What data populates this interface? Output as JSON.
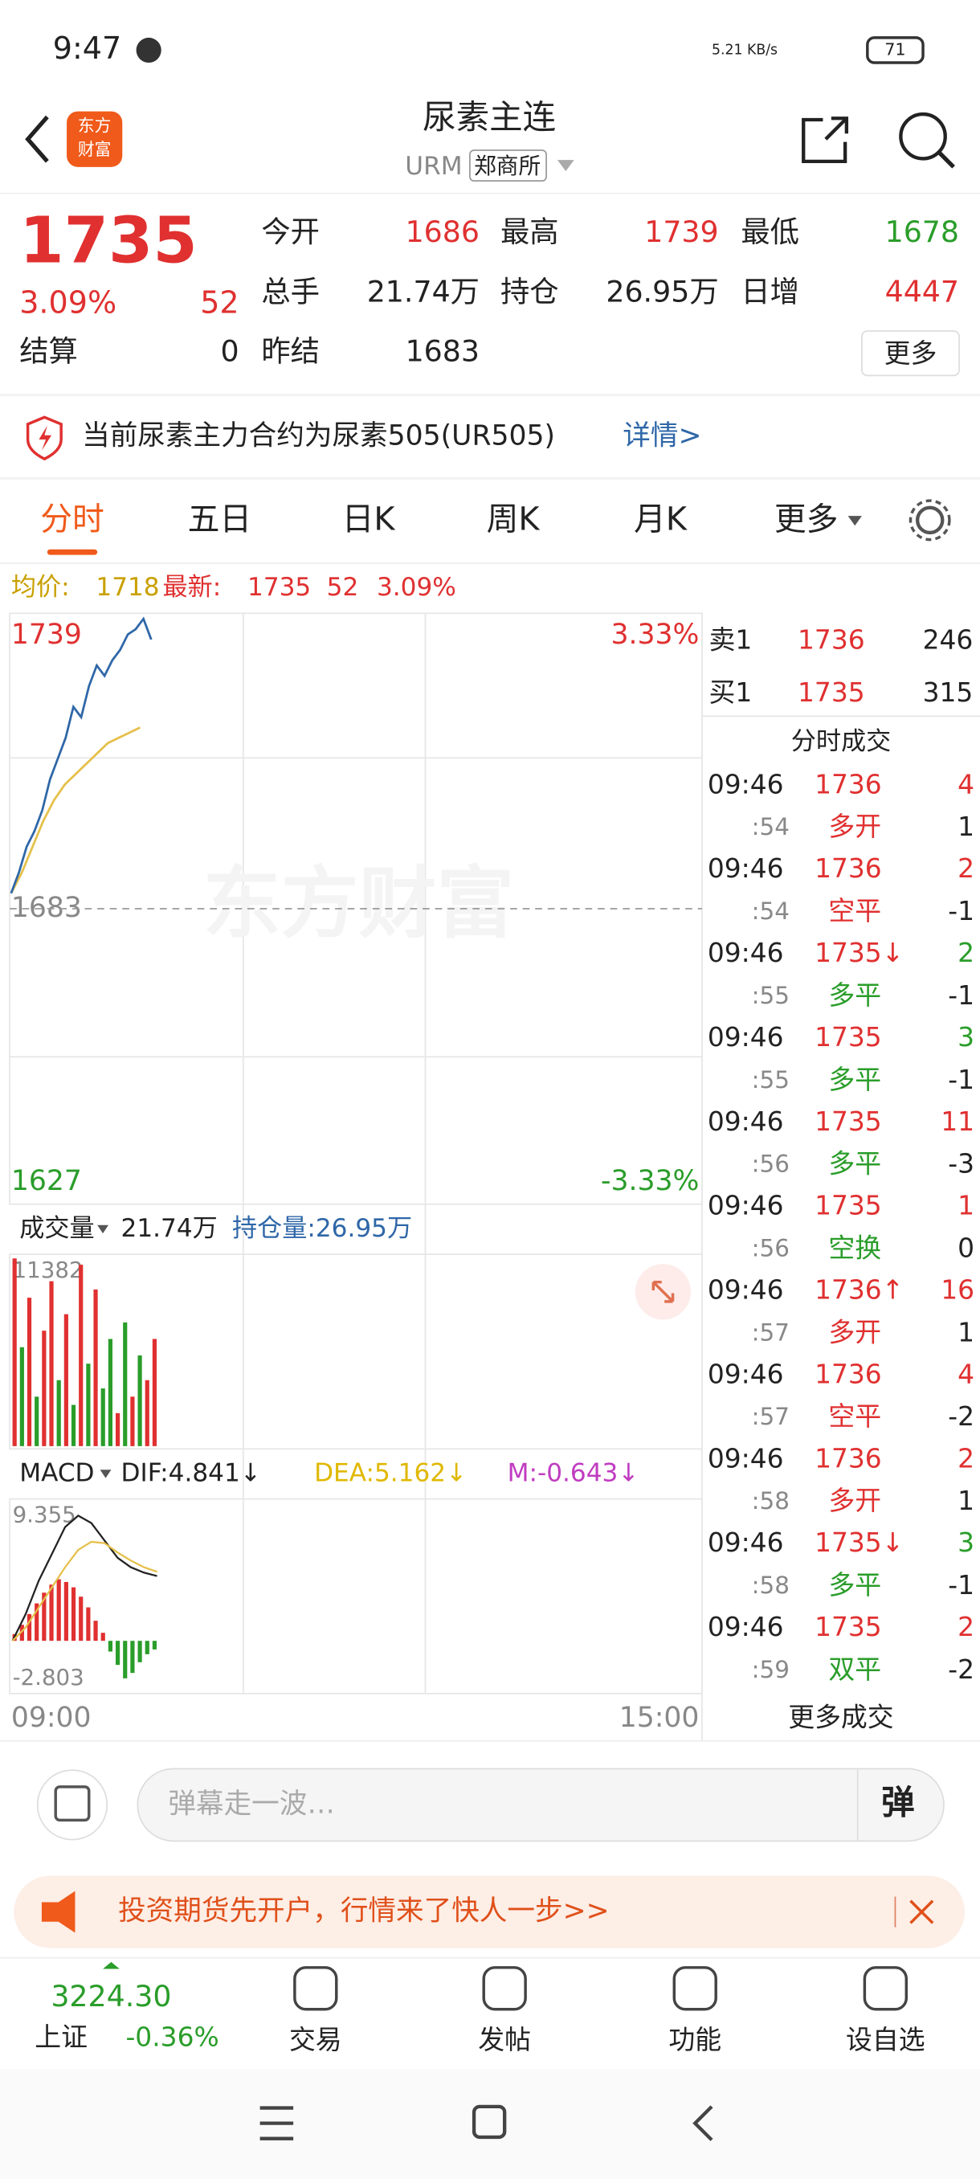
{
  "status": {
    "time": "9:47",
    "speed": "5.21 KB/s",
    "battery": "71"
  },
  "header": {
    "title": "尿素主连",
    "code": "URM",
    "exchange": "郑商所"
  },
  "quote": {
    "price": "1735",
    "pct": "3.09%",
    "change": "52",
    "fields": [
      {
        "label": "今开",
        "value": "1686"
      },
      {
        "label": "最高",
        "value": "1739"
      },
      {
        "label": "最低",
        "value": "1678"
      },
      {
        "label": "总手",
        "value": "21.74万"
      },
      {
        "label": "持仓",
        "value": "26.95万"
      },
      {
        "label": "日增",
        "value": "4447"
      },
      {
        "label": "结算",
        "value": "0"
      },
      {
        "label": "昨结",
        "value": "1683"
      }
    ],
    "more": "更多"
  },
  "notice": {
    "text": "当前尿素主力合约为尿素505(UR505)",
    "link": "详情>"
  },
  "tabs": [
    "分时",
    "五日",
    "日K",
    "周K",
    "月K",
    "更多"
  ],
  "infobar": {
    "avg_label": "均价:",
    "avg": "1718",
    "last_label": "最新:",
    "last": "1735",
    "change": "52",
    "pct": "3.09%"
  },
  "watermark": "东方财富",
  "logo": [
    "东方",
    "财富"
  ],
  "chart_data": [
    {
      "type": "line",
      "ylim": [
        1627,
        1739
      ],
      "yticks": [
        1627,
        1683,
        1739
      ],
      "y2lim": [
        -3.33,
        3.33
      ],
      "y2ticks": [
        {
          "value": -3.33,
          "label": "-3.33%"
        },
        {
          "value": 3.33,
          "label": "3.33%"
        }
      ],
      "xticks": [
        "09:00",
        "15:00"
      ],
      "series": [
        {
          "name": "最新",
          "color": "#2f67a8",
          "values": [
            1686,
            1690,
            1695,
            1698,
            1702,
            1708,
            1712,
            1716,
            1722,
            1720,
            1726,
            1730,
            1728,
            1731,
            1733,
            1736,
            1737,
            1739,
            1735
          ]
        },
        {
          "name": "均价",
          "color": "#e5c04a",
          "values": [
            1686,
            1690,
            1695,
            1700,
            1704,
            1707,
            1709,
            1711,
            1713,
            1715,
            1716,
            1717,
            1718
          ]
        }
      ]
    },
    {
      "type": "bar",
      "title": "成交量",
      "total": "21.74万",
      "oi_label": "持仓量:26.95万",
      "ylim": [
        0,
        11382
      ],
      "yticks": [
        11382
      ],
      "values": [
        11382,
        6000,
        9000,
        3000,
        7000,
        10000,
        4000,
        8000,
        2500,
        11000,
        5000,
        9500,
        3500,
        6500,
        2000,
        7500,
        3000,
        5500,
        4000,
        6500
      ],
      "colors": [
        "#e03030",
        "#2a9d2a",
        "#e03030",
        "#2a9d2a",
        "#e03030",
        "#e03030",
        "#2a9d2a",
        "#e03030",
        "#2a9d2a",
        "#e03030",
        "#2a9d2a",
        "#e03030",
        "#2a9d2a",
        "#2a9d2a",
        "#e03030",
        "#2a9d2a",
        "#e03030",
        "#2a9d2a",
        "#e03030",
        "#e03030"
      ]
    },
    {
      "type": "macd",
      "title": "MACD",
      "dif_label": "DIF:4.841↓",
      "dea_label": "DEA:5.162↓",
      "m_label": "M:-0.643↓",
      "ylim": [
        -2.803,
        9.355
      ],
      "yticks": [
        -2.803,
        9.355
      ],
      "series": [
        {
          "name": "DIF",
          "color": "#222222",
          "values": [
            0,
            2,
            4.5,
            6.5,
            8.5,
            9.355,
            8.8,
            7.5,
            6.2,
            5.5,
            5.1,
            4.841
          ]
        },
        {
          "name": "DEA",
          "color": "#e5c04a",
          "values": [
            0,
            1,
            2.5,
            4,
            5.5,
            6.8,
            7.4,
            7.3,
            6.6,
            6,
            5.5,
            5.162
          ]
        }
      ],
      "hist": [
        0.5,
        1.2,
        2,
        2.8,
        3.6,
        4.2,
        4.6,
        4.4,
        4.0,
        3.3,
        2.5,
        1.5,
        0.6,
        -0.8,
        -1.8,
        -2.803,
        -2.4,
        -1.6,
        -1.0,
        -0.643
      ]
    }
  ],
  "book": [
    {
      "side": "卖1",
      "price": "1736",
      "qty": "246"
    },
    {
      "side": "买1",
      "price": "1735",
      "qty": "315"
    }
  ],
  "trades_title": "分时成交",
  "trades": [
    {
      "time": "09:46",
      "price": "1736",
      "qty": 4,
      "qty_color": "#e03030",
      "sec": ":54",
      "kind": "多开",
      "kind_color": "#e03030",
      "oi": 1
    },
    {
      "time": "09:46",
      "price": "1736",
      "qty": 2,
      "qty_color": "#e03030",
      "sec": ":54",
      "kind": "空平",
      "kind_color": "#e03030",
      "oi": -1
    },
    {
      "time": "09:46",
      "price": "1735↓",
      "qty": 2,
      "qty_color": "#2a9d2a",
      "sec": ":55",
      "kind": "多平",
      "kind_color": "#2a9d2a",
      "oi": -1
    },
    {
      "time": "09:46",
      "price": "1735",
      "qty": 3,
      "qty_color": "#2a9d2a",
      "sec": ":55",
      "kind": "多平",
      "kind_color": "#2a9d2a",
      "oi": -1
    },
    {
      "time": "09:46",
      "price": "1735",
      "qty": 11,
      "qty_color": "#e03030",
      "sec": ":56",
      "kind": "多平",
      "kind_color": "#2a9d2a",
      "oi": -3
    },
    {
      "time": "09:46",
      "price": "1735",
      "qty": 1,
      "qty_color": "#e03030",
      "sec": ":56",
      "kind": "空换",
      "kind_color": "#2a9d2a",
      "oi": 0
    },
    {
      "time": "09:46",
      "price": "1736↑",
      "qty": 16,
      "qty_color": "#e03030",
      "sec": ":57",
      "kind": "多开",
      "kind_color": "#e03030",
      "oi": 1
    },
    {
      "time": "09:46",
      "price": "1736",
      "qty": 4,
      "qty_color": "#e03030",
      "sec": ":57",
      "kind": "空平",
      "kind_color": "#e03030",
      "oi": -2
    },
    {
      "time": "09:46",
      "price": "1736",
      "qty": 2,
      "qty_color": "#e03030",
      "sec": ":58",
      "kind": "多开",
      "kind_color": "#e03030",
      "oi": 1
    },
    {
      "time": "09:46",
      "price": "1735↓",
      "qty": 3,
      "qty_color": "#2a9d2a",
      "sec": ":58",
      "kind": "多平",
      "kind_color": "#2a9d2a",
      "oi": -1
    },
    {
      "time": "09:46",
      "price": "1735",
      "qty": 2,
      "qty_color": "#e03030",
      "sec": ":59",
      "kind": "双平",
      "kind_color": "#2a9d2a",
      "oi": -2
    }
  ],
  "more_trades": "更多成交",
  "danmu": {
    "placeholder": "弹幕走一波…",
    "button": "弹"
  },
  "ad": "投资期货先开户，行情来了快人一步>>",
  "nav": {
    "index_value": "3224.30",
    "index_name": "上证",
    "index_pct": "-0.36%",
    "items": [
      "交易",
      "发帖",
      "功能",
      "设自选"
    ]
  }
}
